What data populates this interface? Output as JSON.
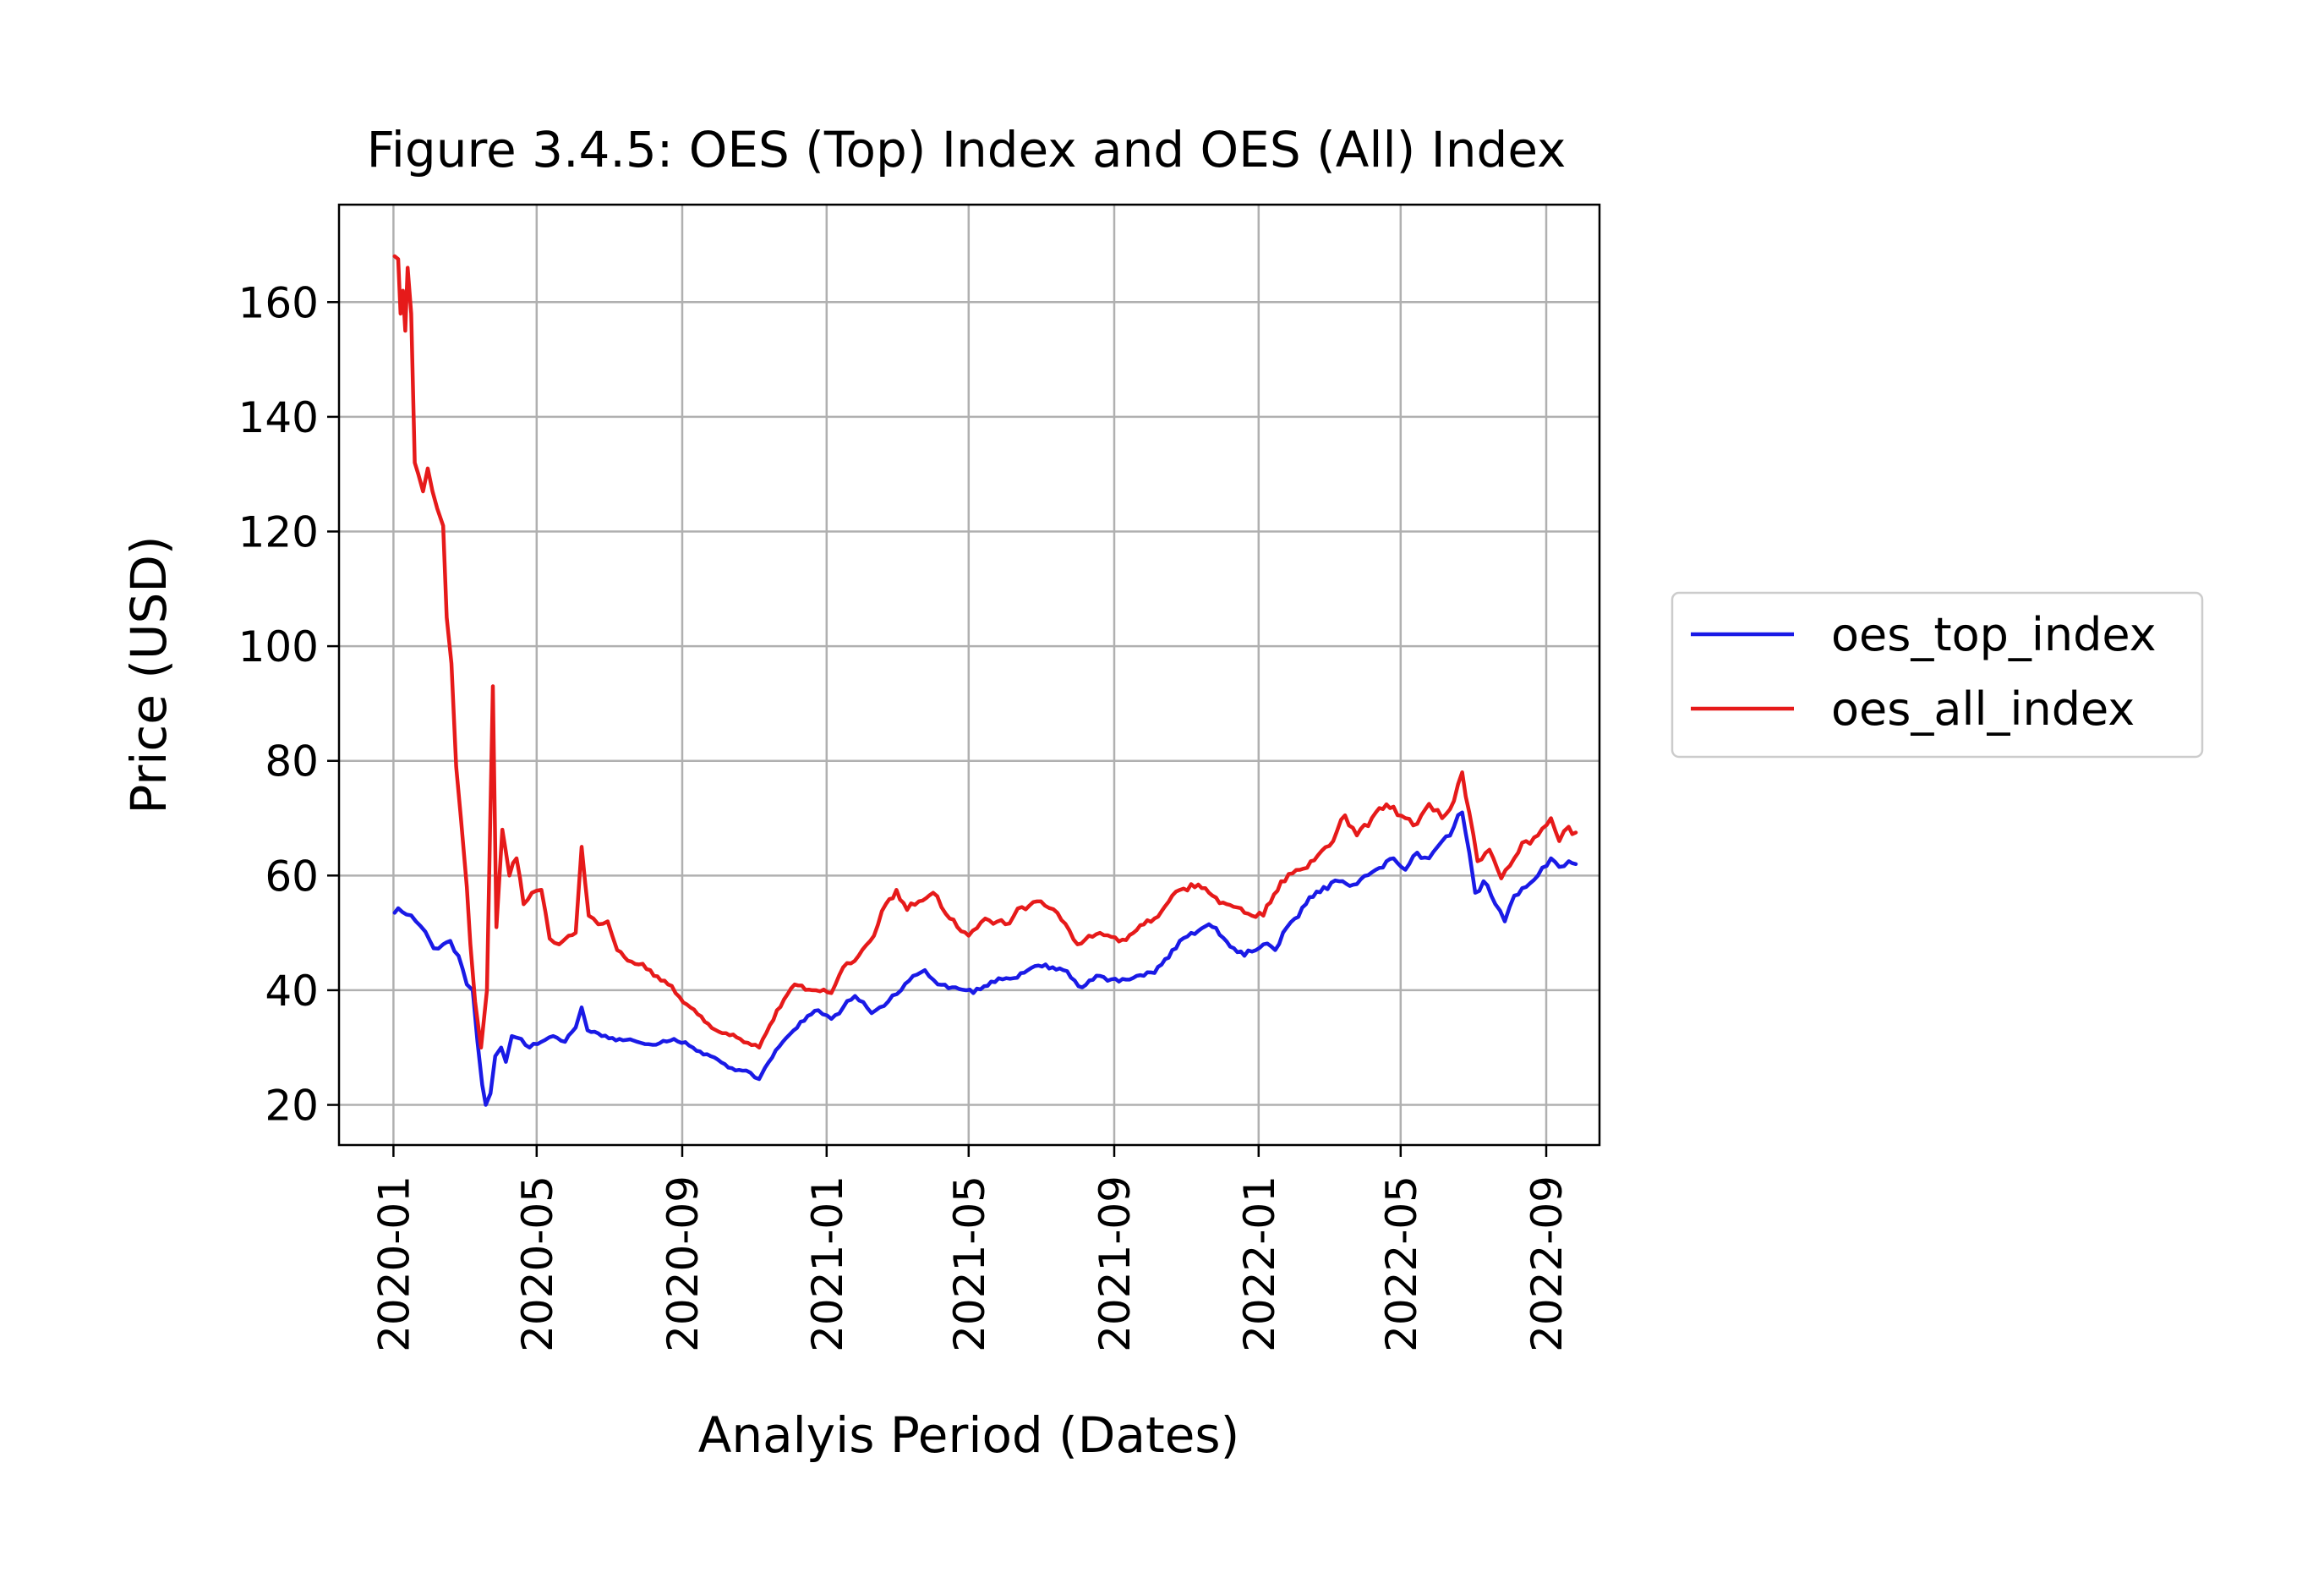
{
  "chart_data": {
    "type": "line",
    "title": "Figure 3.4.5: OES (Top) Index and OES (All) Index",
    "xlabel": "Analyis Period (Dates)",
    "ylabel": "Price (USD)",
    "x_axis_type": "date",
    "xlim": [
      "2019-11-16",
      "2022-10-16"
    ],
    "ylim": [
      13,
      177
    ],
    "x_ticks": [
      "2020-01",
      "2020-05",
      "2020-09",
      "2021-01",
      "2021-05",
      "2021-09",
      "2022-01",
      "2022-05",
      "2022-09"
    ],
    "y_ticks": [
      20,
      40,
      60,
      80,
      100,
      120,
      140,
      160
    ],
    "grid": true,
    "legend_position": "outside-right",
    "series": [
      {
        "name": "oes_top_index",
        "color": "#1a1ae6",
        "points": [
          [
            "2020-01-02",
            53.5
          ],
          [
            "2020-01-05",
            54.3
          ],
          [
            "2020-01-12",
            53.2
          ],
          [
            "2020-01-20",
            52.0
          ],
          [
            "2020-01-28",
            50.2
          ],
          [
            "2020-02-04",
            47.3
          ],
          [
            "2020-02-12",
            48.0
          ],
          [
            "2020-02-18",
            48.6
          ],
          [
            "2020-02-25",
            46.0
          ],
          [
            "2020-03-03",
            41.0
          ],
          [
            "2020-03-08",
            40.0
          ],
          [
            "2020-03-12",
            31.0
          ],
          [
            "2020-03-16",
            23.5
          ],
          [
            "2020-03-19",
            20.0
          ],
          [
            "2020-03-23",
            22.0
          ],
          [
            "2020-03-27",
            28.5
          ],
          [
            "2020-04-01",
            30.0
          ],
          [
            "2020-04-05",
            27.5
          ],
          [
            "2020-04-10",
            32.0
          ],
          [
            "2020-04-18",
            31.5
          ],
          [
            "2020-04-25",
            30.0
          ],
          [
            "2020-05-05",
            31.0
          ],
          [
            "2020-05-15",
            32.0
          ],
          [
            "2020-05-25",
            31.0
          ],
          [
            "2020-06-03",
            33.5
          ],
          [
            "2020-06-08",
            37.0
          ],
          [
            "2020-06-13",
            33.0
          ],
          [
            "2020-06-25",
            32.0
          ],
          [
            "2020-07-10",
            31.5
          ],
          [
            "2020-07-25",
            31.0
          ],
          [
            "2020-08-10",
            30.5
          ],
          [
            "2020-08-25",
            31.5
          ],
          [
            "2020-09-10",
            30.0
          ],
          [
            "2020-09-25",
            28.5
          ],
          [
            "2020-10-10",
            26.5
          ],
          [
            "2020-10-25",
            26.0
          ],
          [
            "2020-11-05",
            24.5
          ],
          [
            "2020-11-10",
            26.5
          ],
          [
            "2020-11-25",
            31.0
          ],
          [
            "2020-12-10",
            34.5
          ],
          [
            "2020-12-25",
            36.5
          ],
          [
            "2021-01-05",
            35.0
          ],
          [
            "2021-01-15",
            37.0
          ],
          [
            "2021-01-25",
            39.0
          ],
          [
            "2021-02-08",
            36.0
          ],
          [
            "2021-02-22",
            38.0
          ],
          [
            "2021-03-05",
            40.0
          ],
          [
            "2021-03-15",
            42.5
          ],
          [
            "2021-03-25",
            43.5
          ],
          [
            "2021-04-05",
            41.0
          ],
          [
            "2021-04-20",
            40.5
          ],
          [
            "2021-05-05",
            39.5
          ],
          [
            "2021-05-20",
            41.5
          ],
          [
            "2021-06-05",
            42.0
          ],
          [
            "2021-06-20",
            43.5
          ],
          [
            "2021-07-05",
            44.5
          ],
          [
            "2021-07-20",
            43.5
          ],
          [
            "2021-08-05",
            40.5
          ],
          [
            "2021-08-20",
            42.5
          ],
          [
            "2021-09-05",
            41.5
          ],
          [
            "2021-09-20",
            42.5
          ],
          [
            "2021-10-05",
            43.0
          ],
          [
            "2021-10-20",
            47.0
          ],
          [
            "2021-11-05",
            50.0
          ],
          [
            "2021-11-20",
            51.5
          ],
          [
            "2021-12-05",
            48.5
          ],
          [
            "2021-12-20",
            46.0
          ],
          [
            "2022-01-05",
            48.0
          ],
          [
            "2022-01-15",
            47.0
          ],
          [
            "2022-01-25",
            51.0
          ],
          [
            "2022-02-10",
            55.0
          ],
          [
            "2022-02-25",
            58.0
          ],
          [
            "2022-03-10",
            59.0
          ],
          [
            "2022-03-25",
            58.5
          ],
          [
            "2022-04-10",
            61.0
          ],
          [
            "2022-04-25",
            63.0
          ],
          [
            "2022-05-05",
            61.0
          ],
          [
            "2022-05-15",
            64.0
          ],
          [
            "2022-05-25",
            63.0
          ],
          [
            "2022-06-05",
            66.0
          ],
          [
            "2022-06-15",
            68.5
          ],
          [
            "2022-06-22",
            71.0
          ],
          [
            "2022-06-28",
            64.0
          ],
          [
            "2022-07-03",
            57.0
          ],
          [
            "2022-07-10",
            59.0
          ],
          [
            "2022-07-20",
            55.0
          ],
          [
            "2022-07-28",
            52.0
          ],
          [
            "2022-08-05",
            56.5
          ],
          [
            "2022-08-15",
            58.0
          ],
          [
            "2022-08-25",
            60.0
          ],
          [
            "2022-09-05",
            63.0
          ],
          [
            "2022-09-12",
            61.5
          ],
          [
            "2022-09-20",
            62.5
          ],
          [
            "2022-09-26",
            62.0
          ]
        ]
      },
      {
        "name": "oes_all_index",
        "color": "#e61a1a",
        "points": [
          [
            "2020-01-02",
            168.0
          ],
          [
            "2020-01-05",
            167.5
          ],
          [
            "2020-01-07",
            158.0
          ],
          [
            "2020-01-09",
            162.0
          ],
          [
            "2020-01-11",
            155.0
          ],
          [
            "2020-01-13",
            166.0
          ],
          [
            "2020-01-16",
            158.0
          ],
          [
            "2020-01-19",
            132.0
          ],
          [
            "2020-01-22",
            130.0
          ],
          [
            "2020-01-26",
            127.0
          ],
          [
            "2020-01-30",
            131.0
          ],
          [
            "2020-02-03",
            127.0
          ],
          [
            "2020-02-07",
            124.0
          ],
          [
            "2020-02-12",
            121.0
          ],
          [
            "2020-02-15",
            105.0
          ],
          [
            "2020-02-19",
            97.0
          ],
          [
            "2020-02-23",
            79.0
          ],
          [
            "2020-02-27",
            70.0
          ],
          [
            "2020-03-03",
            58.0
          ],
          [
            "2020-03-06",
            48.0
          ],
          [
            "2020-03-10",
            38.0
          ],
          [
            "2020-03-15",
            30.0
          ],
          [
            "2020-03-20",
            40.0
          ],
          [
            "2020-03-25",
            93.0
          ],
          [
            "2020-03-28",
            51.0
          ],
          [
            "2020-04-02",
            68.0
          ],
          [
            "2020-04-08",
            60.0
          ],
          [
            "2020-04-14",
            63.0
          ],
          [
            "2020-04-20",
            55.0
          ],
          [
            "2020-04-27",
            57.0
          ],
          [
            "2020-05-05",
            57.5
          ],
          [
            "2020-05-12",
            49.0
          ],
          [
            "2020-05-20",
            48.0
          ],
          [
            "2020-05-28",
            49.5
          ],
          [
            "2020-06-03",
            50.0
          ],
          [
            "2020-06-08",
            65.0
          ],
          [
            "2020-06-14",
            53.0
          ],
          [
            "2020-06-22",
            51.5
          ],
          [
            "2020-06-30",
            52.0
          ],
          [
            "2020-07-08",
            47.0
          ],
          [
            "2020-07-20",
            45.0
          ],
          [
            "2020-08-05",
            43.5
          ],
          [
            "2020-08-20",
            41.0
          ],
          [
            "2020-09-05",
            37.5
          ],
          [
            "2020-09-20",
            34.5
          ],
          [
            "2020-10-05",
            32.5
          ],
          [
            "2020-10-20",
            31.5
          ],
          [
            "2020-11-05",
            30.0
          ],
          [
            "2020-11-20",
            36.5
          ],
          [
            "2020-12-05",
            41.0
          ],
          [
            "2020-12-20",
            40.0
          ],
          [
            "2021-01-05",
            39.5
          ],
          [
            "2021-01-15",
            44.0
          ],
          [
            "2021-01-28",
            46.0
          ],
          [
            "2021-02-10",
            49.5
          ],
          [
            "2021-02-20",
            55.0
          ],
          [
            "2021-03-01",
            57.5
          ],
          [
            "2021-03-10",
            54.0
          ],
          [
            "2021-03-20",
            55.5
          ],
          [
            "2021-04-01",
            57.0
          ],
          [
            "2021-04-15",
            52.5
          ],
          [
            "2021-05-01",
            49.5
          ],
          [
            "2021-05-15",
            52.5
          ],
          [
            "2021-06-01",
            51.5
          ],
          [
            "2021-06-15",
            54.5
          ],
          [
            "2021-07-01",
            55.5
          ],
          [
            "2021-07-15",
            53.5
          ],
          [
            "2021-08-01",
            48.0
          ],
          [
            "2021-08-20",
            50.0
          ],
          [
            "2021-09-05",
            48.5
          ],
          [
            "2021-09-20",
            50.5
          ],
          [
            "2021-10-05",
            52.5
          ],
          [
            "2021-10-20",
            56.5
          ],
          [
            "2021-11-05",
            58.5
          ],
          [
            "2021-11-20",
            57.0
          ],
          [
            "2021-12-05",
            55.0
          ],
          [
            "2021-12-20",
            53.5
          ],
          [
            "2022-01-05",
            53.0
          ],
          [
            "2022-01-20",
            59.0
          ],
          [
            "2022-02-05",
            61.0
          ],
          [
            "2022-02-20",
            63.5
          ],
          [
            "2022-03-05",
            66.0
          ],
          [
            "2022-03-15",
            70.5
          ],
          [
            "2022-03-25",
            67.0
          ],
          [
            "2022-04-10",
            71.0
          ],
          [
            "2022-04-25",
            72.0
          ],
          [
            "2022-05-05",
            70.0
          ],
          [
            "2022-05-15",
            69.0
          ],
          [
            "2022-05-25",
            72.5
          ],
          [
            "2022-06-05",
            70.0
          ],
          [
            "2022-06-15",
            73.0
          ],
          [
            "2022-06-22",
            78.0
          ],
          [
            "2022-06-28",
            71.0
          ],
          [
            "2022-07-05",
            62.5
          ],
          [
            "2022-07-15",
            64.5
          ],
          [
            "2022-07-25",
            59.5
          ],
          [
            "2022-08-05",
            63.0
          ],
          [
            "2022-08-15",
            66.0
          ],
          [
            "2022-08-25",
            67.0
          ],
          [
            "2022-09-05",
            70.0
          ],
          [
            "2022-09-12",
            66.0
          ],
          [
            "2022-09-20",
            68.5
          ],
          [
            "2022-09-26",
            67.5
          ]
        ]
      }
    ]
  }
}
